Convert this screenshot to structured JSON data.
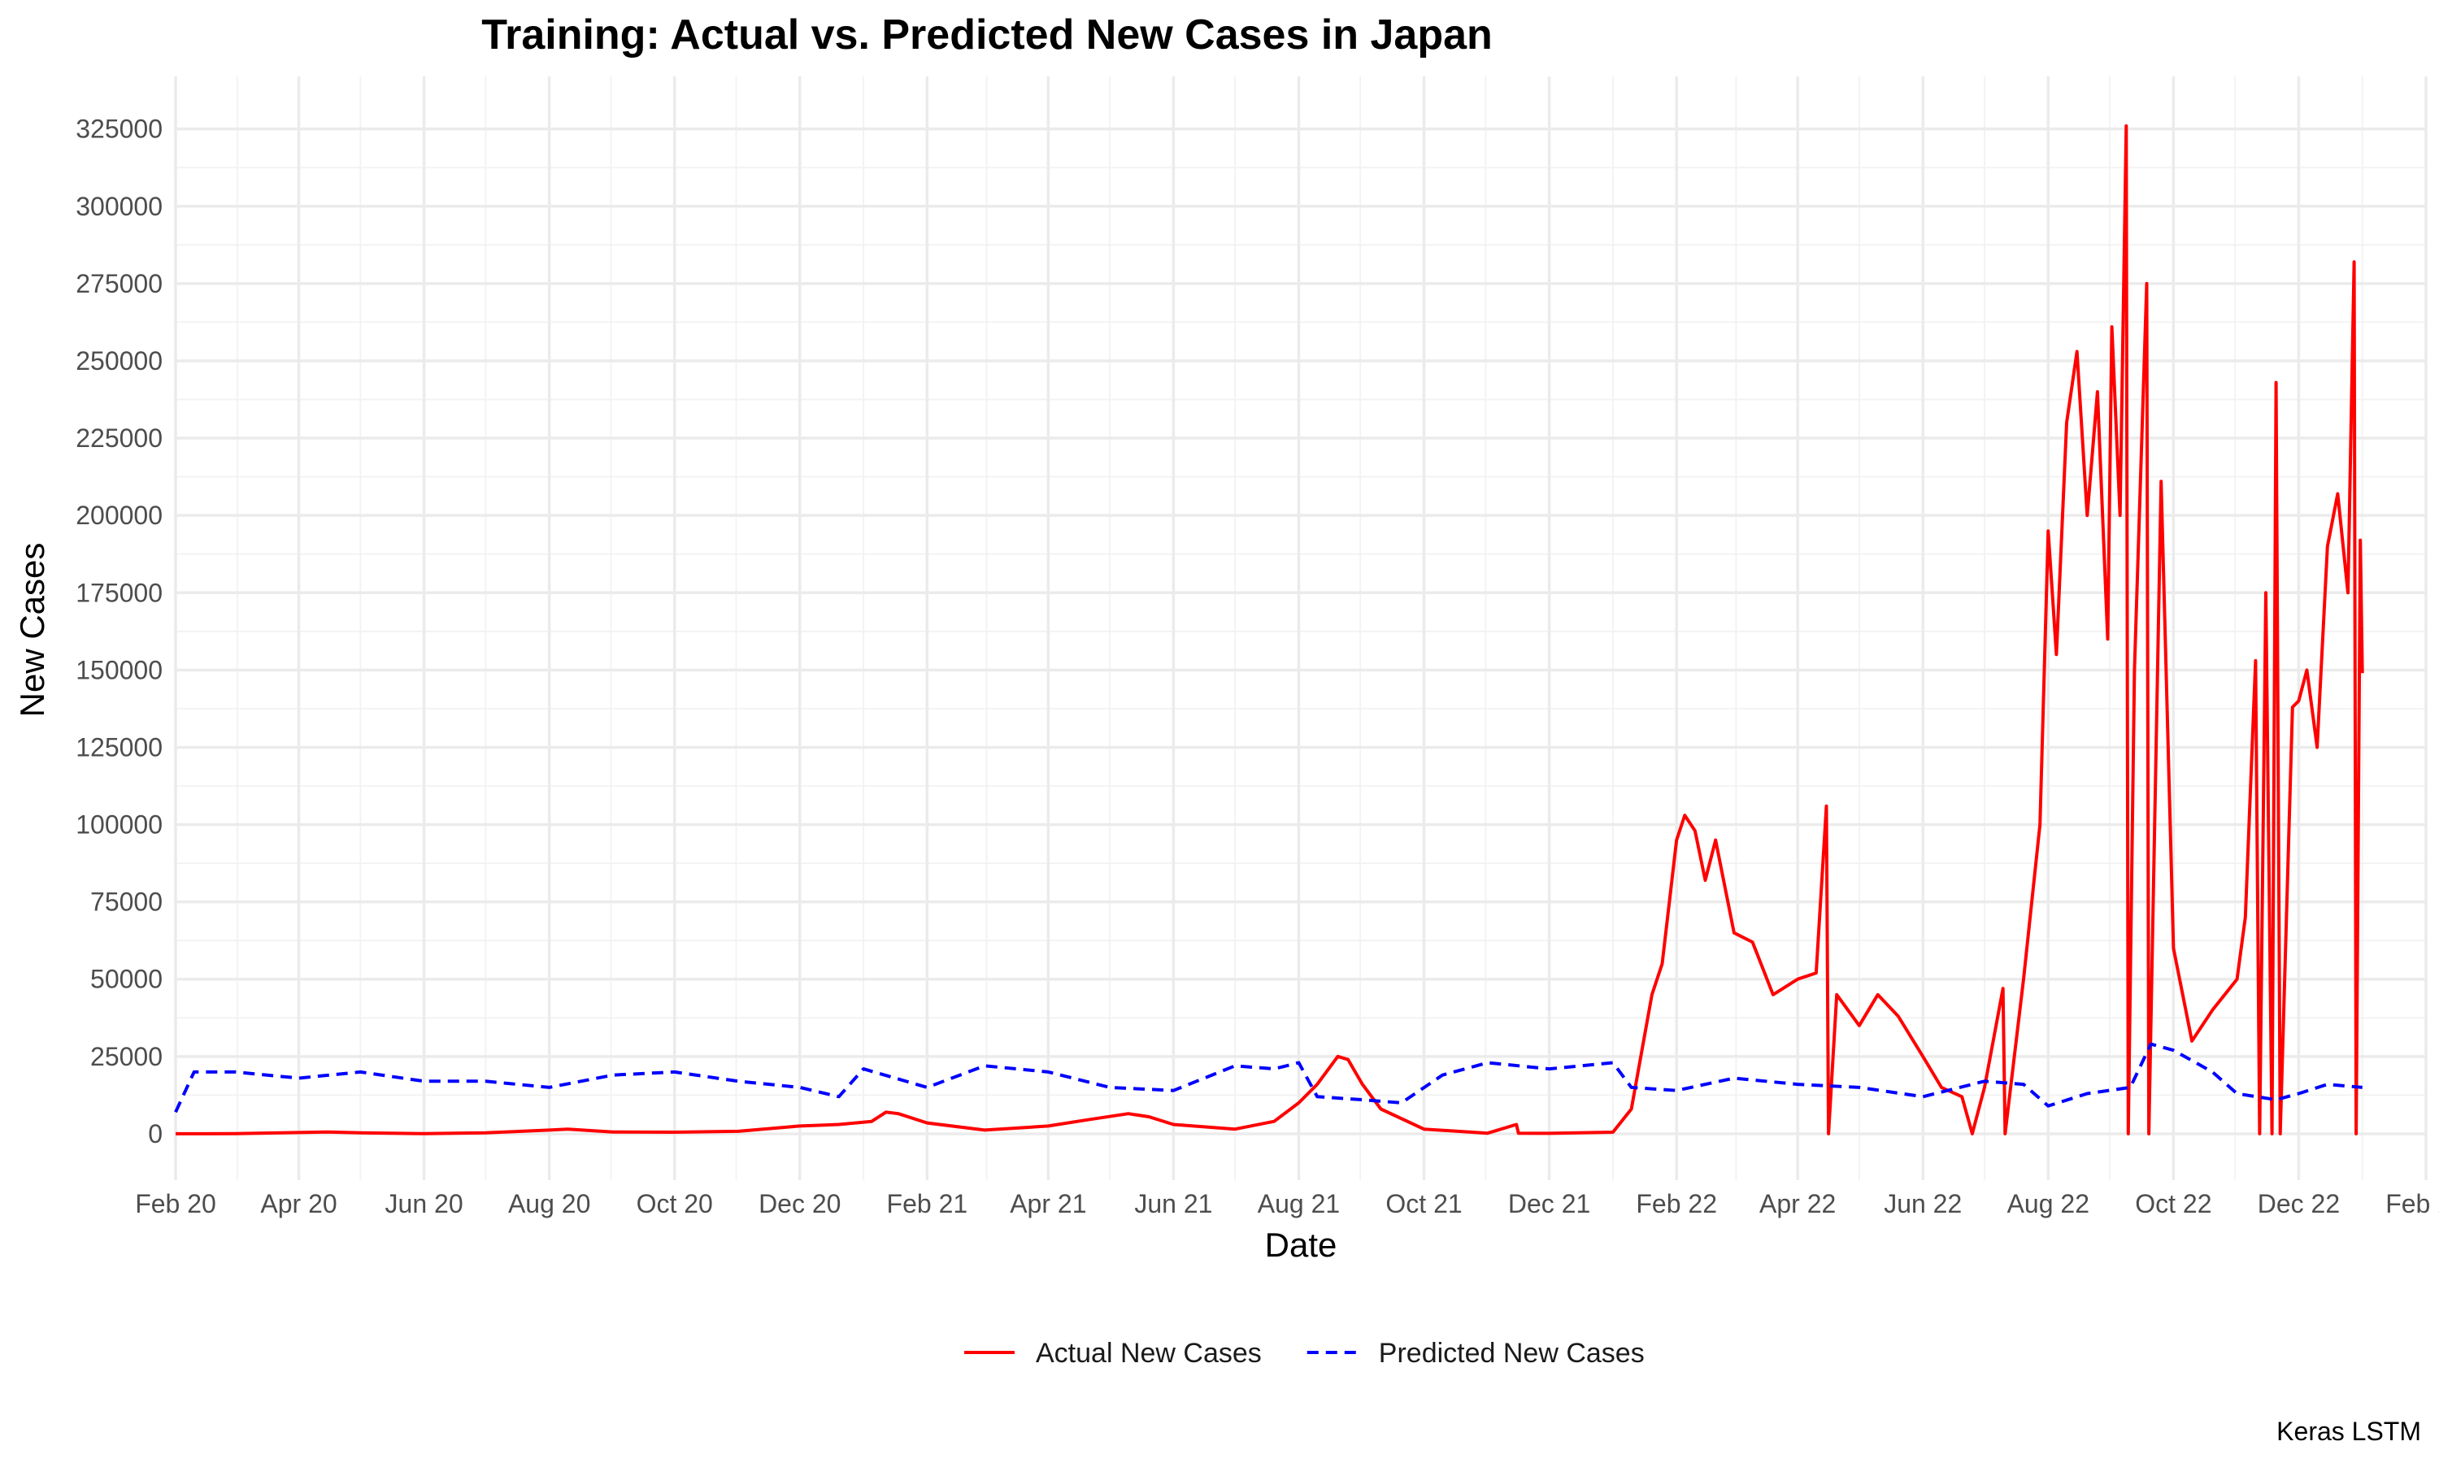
{
  "chart_data": {
    "type": "line",
    "title": "Training: Actual vs. Predicted New Cases in Japan",
    "xlabel": "Date",
    "ylabel": "New Cases",
    "caption": "Keras LSTM",
    "x_scale": "date",
    "xlim": [
      "2020-02-01",
      "2023-02-01"
    ],
    "ylim": [
      -15000,
      342000
    ],
    "x_ticks": [
      {
        "date": "2020-02-01",
        "label": "Feb 20"
      },
      {
        "date": "2020-04-01",
        "label": "Apr 20"
      },
      {
        "date": "2020-06-01",
        "label": "Jun 20"
      },
      {
        "date": "2020-08-01",
        "label": "Aug 20"
      },
      {
        "date": "2020-10-01",
        "label": "Oct 20"
      },
      {
        "date": "2020-12-01",
        "label": "Dec 20"
      },
      {
        "date": "2021-02-01",
        "label": "Feb 21"
      },
      {
        "date": "2021-04-01",
        "label": "Apr 21"
      },
      {
        "date": "2021-06-01",
        "label": "Jun 21"
      },
      {
        "date": "2021-08-01",
        "label": "Aug 21"
      },
      {
        "date": "2021-10-01",
        "label": "Oct 21"
      },
      {
        "date": "2021-12-01",
        "label": "Dec 21"
      },
      {
        "date": "2022-02-01",
        "label": "Feb 22"
      },
      {
        "date": "2022-04-01",
        "label": "Apr 22"
      },
      {
        "date": "2022-06-01",
        "label": "Jun 22"
      },
      {
        "date": "2022-08-01",
        "label": "Aug 22"
      },
      {
        "date": "2022-10-01",
        "label": "Oct 22"
      },
      {
        "date": "2022-12-01",
        "label": "Dec 22"
      },
      {
        "date": "2023-02-01",
        "label": "Feb 23"
      }
    ],
    "y_ticks": [
      0,
      25000,
      50000,
      75000,
      100000,
      125000,
      150000,
      175000,
      200000,
      225000,
      250000,
      275000,
      300000,
      325000
    ],
    "grid": true,
    "legend": {
      "position": "bottom"
    },
    "series": [
      {
        "name": "Actual New Cases",
        "color": "#ff0000",
        "line_style": "solid",
        "points": [
          [
            "2020-02-01",
            0
          ],
          [
            "2020-03-01",
            50
          ],
          [
            "2020-04-01",
            400
          ],
          [
            "2020-04-15",
            600
          ],
          [
            "2020-05-01",
            300
          ],
          [
            "2020-06-01",
            50
          ],
          [
            "2020-07-01",
            300
          ],
          [
            "2020-08-01",
            1200
          ],
          [
            "2020-08-10",
            1500
          ],
          [
            "2020-09-01",
            600
          ],
          [
            "2020-10-01",
            500
          ],
          [
            "2020-11-01",
            800
          ],
          [
            "2020-12-01",
            2500
          ],
          [
            "2020-12-20",
            3000
          ],
          [
            "2021-01-05",
            4000
          ],
          [
            "2021-01-12",
            7000
          ],
          [
            "2021-01-18",
            6500
          ],
          [
            "2021-02-01",
            3500
          ],
          [
            "2021-03-01",
            1200
          ],
          [
            "2021-04-01",
            2500
          ],
          [
            "2021-04-20",
            4500
          ],
          [
            "2021-05-10",
            6500
          ],
          [
            "2021-05-20",
            5500
          ],
          [
            "2021-06-01",
            3000
          ],
          [
            "2021-07-01",
            1500
          ],
          [
            "2021-07-20",
            4000
          ],
          [
            "2021-08-01",
            10000
          ],
          [
            "2021-08-10",
            16000
          ],
          [
            "2021-08-20",
            25000
          ],
          [
            "2021-08-25",
            24000
          ],
          [
            "2021-09-01",
            16000
          ],
          [
            "2021-09-10",
            8000
          ],
          [
            "2021-10-01",
            1500
          ],
          [
            "2021-11-01",
            200
          ],
          [
            "2021-11-15",
            3000
          ],
          [
            "2021-11-16",
            200
          ],
          [
            "2021-12-01",
            150
          ],
          [
            "2022-01-01",
            500
          ],
          [
            "2022-01-10",
            8000
          ],
          [
            "2022-01-20",
            45000
          ],
          [
            "2022-01-25",
            55000
          ],
          [
            "2022-02-01",
            95000
          ],
          [
            "2022-02-05",
            103000
          ],
          [
            "2022-02-10",
            98000
          ],
          [
            "2022-02-15",
            82000
          ],
          [
            "2022-02-20",
            95000
          ],
          [
            "2022-03-01",
            65000
          ],
          [
            "2022-03-10",
            62000
          ],
          [
            "2022-03-20",
            45000
          ],
          [
            "2022-04-01",
            50000
          ],
          [
            "2022-04-10",
            52000
          ],
          [
            "2022-04-15",
            106000
          ],
          [
            "2022-04-16",
            0
          ],
          [
            "2022-04-20",
            45000
          ],
          [
            "2022-05-01",
            35000
          ],
          [
            "2022-05-10",
            45000
          ],
          [
            "2022-05-20",
            38000
          ],
          [
            "2022-06-01",
            25000
          ],
          [
            "2022-06-10",
            15000
          ],
          [
            "2022-06-20",
            12000
          ],
          [
            "2022-06-25",
            0
          ],
          [
            "2022-07-01",
            15000
          ],
          [
            "2022-07-10",
            47000
          ],
          [
            "2022-07-11",
            0
          ],
          [
            "2022-07-20",
            50000
          ],
          [
            "2022-07-28",
            100000
          ],
          [
            "2022-08-01",
            195000
          ],
          [
            "2022-08-05",
            155000
          ],
          [
            "2022-08-10",
            230000
          ],
          [
            "2022-08-15",
            253000
          ],
          [
            "2022-08-20",
            200000
          ],
          [
            "2022-08-25",
            240000
          ],
          [
            "2022-08-30",
            160000
          ],
          [
            "2022-09-01",
            261000
          ],
          [
            "2022-09-05",
            200000
          ],
          [
            "2022-09-08",
            326000
          ],
          [
            "2022-09-09",
            0
          ],
          [
            "2022-09-12",
            150000
          ],
          [
            "2022-09-18",
            275000
          ],
          [
            "2022-09-19",
            0
          ],
          [
            "2022-09-25",
            211000
          ],
          [
            "2022-10-01",
            60000
          ],
          [
            "2022-10-10",
            30000
          ],
          [
            "2022-10-20",
            40000
          ],
          [
            "2022-11-01",
            50000
          ],
          [
            "2022-11-05",
            70000
          ],
          [
            "2022-11-10",
            153000
          ],
          [
            "2022-11-12",
            0
          ],
          [
            "2022-11-15",
            175000
          ],
          [
            "2022-11-18",
            0
          ],
          [
            "2022-11-20",
            243000
          ],
          [
            "2022-11-22",
            0
          ],
          [
            "2022-11-28",
            138000
          ],
          [
            "2022-12-01",
            140000
          ],
          [
            "2022-12-05",
            150000
          ],
          [
            "2022-12-10",
            125000
          ],
          [
            "2022-12-15",
            190000
          ],
          [
            "2022-12-20",
            207000
          ],
          [
            "2022-12-25",
            175000
          ],
          [
            "2022-12-28",
            282000
          ],
          [
            "2022-12-29",
            0
          ],
          [
            "2022-12-31",
            192000
          ],
          [
            "2023-01-01",
            149000
          ]
        ]
      },
      {
        "name": "Predicted New Cases",
        "color": "#0000ff",
        "line_style": "dashed",
        "points": [
          [
            "2020-02-01",
            7000
          ],
          [
            "2020-02-10",
            20000
          ],
          [
            "2020-03-01",
            20000
          ],
          [
            "2020-04-01",
            18000
          ],
          [
            "2020-05-01",
            20000
          ],
          [
            "2020-06-01",
            17000
          ],
          [
            "2020-07-01",
            17000
          ],
          [
            "2020-08-01",
            15000
          ],
          [
            "2020-09-01",
            19000
          ],
          [
            "2020-10-01",
            20000
          ],
          [
            "2020-11-01",
            17000
          ],
          [
            "2020-12-01",
            15000
          ],
          [
            "2020-12-20",
            12000
          ],
          [
            "2021-01-01",
            21000
          ],
          [
            "2021-02-01",
            15000
          ],
          [
            "2021-03-01",
            22000
          ],
          [
            "2021-04-01",
            20000
          ],
          [
            "2021-05-01",
            15000
          ],
          [
            "2021-06-01",
            14000
          ],
          [
            "2021-07-01",
            22000
          ],
          [
            "2021-07-20",
            21000
          ],
          [
            "2021-08-01",
            23000
          ],
          [
            "2021-08-10",
            12000
          ],
          [
            "2021-09-01",
            11000
          ],
          [
            "2021-09-20",
            10000
          ],
          [
            "2021-10-10",
            19000
          ],
          [
            "2021-11-01",
            23000
          ],
          [
            "2021-12-01",
            21000
          ],
          [
            "2022-01-01",
            23000
          ],
          [
            "2022-01-10",
            15000
          ],
          [
            "2022-02-01",
            14000
          ],
          [
            "2022-03-01",
            18000
          ],
          [
            "2022-04-01",
            16000
          ],
          [
            "2022-05-01",
            15000
          ],
          [
            "2022-06-01",
            12000
          ],
          [
            "2022-07-01",
            17000
          ],
          [
            "2022-07-20",
            16000
          ],
          [
            "2022-08-01",
            9000
          ],
          [
            "2022-08-20",
            13000
          ],
          [
            "2022-09-10",
            15000
          ],
          [
            "2022-09-20",
            29000
          ],
          [
            "2022-10-01",
            27000
          ],
          [
            "2022-10-20",
            20000
          ],
          [
            "2022-11-01",
            13000
          ],
          [
            "2022-11-20",
            11000
          ],
          [
            "2022-12-01",
            13000
          ],
          [
            "2022-12-15",
            16000
          ],
          [
            "2023-01-01",
            15000
          ]
        ]
      }
    ]
  }
}
